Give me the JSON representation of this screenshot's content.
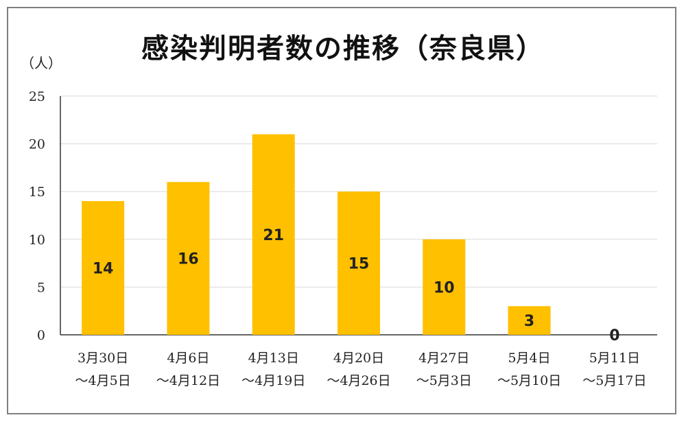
{
  "chart_data": {
    "type": "bar",
    "title": "感染判明者数の推移（奈良県）",
    "ylabel": "（人）",
    "xlabel": "",
    "categories": [
      [
        "3月30日",
        "～4月5日"
      ],
      [
        "4月6日",
        "～4月12日"
      ],
      [
        "4月13日",
        "～4月19日"
      ],
      [
        "4月20日",
        "～4月26日"
      ],
      [
        "4月27日",
        "～5月3日"
      ],
      [
        "5月4日",
        "～5月10日"
      ],
      [
        "5月11日",
        "～5月17日"
      ]
    ],
    "values": [
      14,
      16,
      21,
      15,
      10,
      3,
      0
    ],
    "data_labels": [
      "14",
      "16",
      "21",
      "15",
      "10",
      "3",
      "0"
    ],
    "ylim": [
      0,
      25
    ],
    "yticks": [
      0,
      5,
      10,
      15,
      20,
      25
    ],
    "grid": true,
    "legend": "none",
    "colors": {
      "bar": "#FFC000",
      "grid": "#d9d9d9",
      "axis": "#333333"
    }
  }
}
